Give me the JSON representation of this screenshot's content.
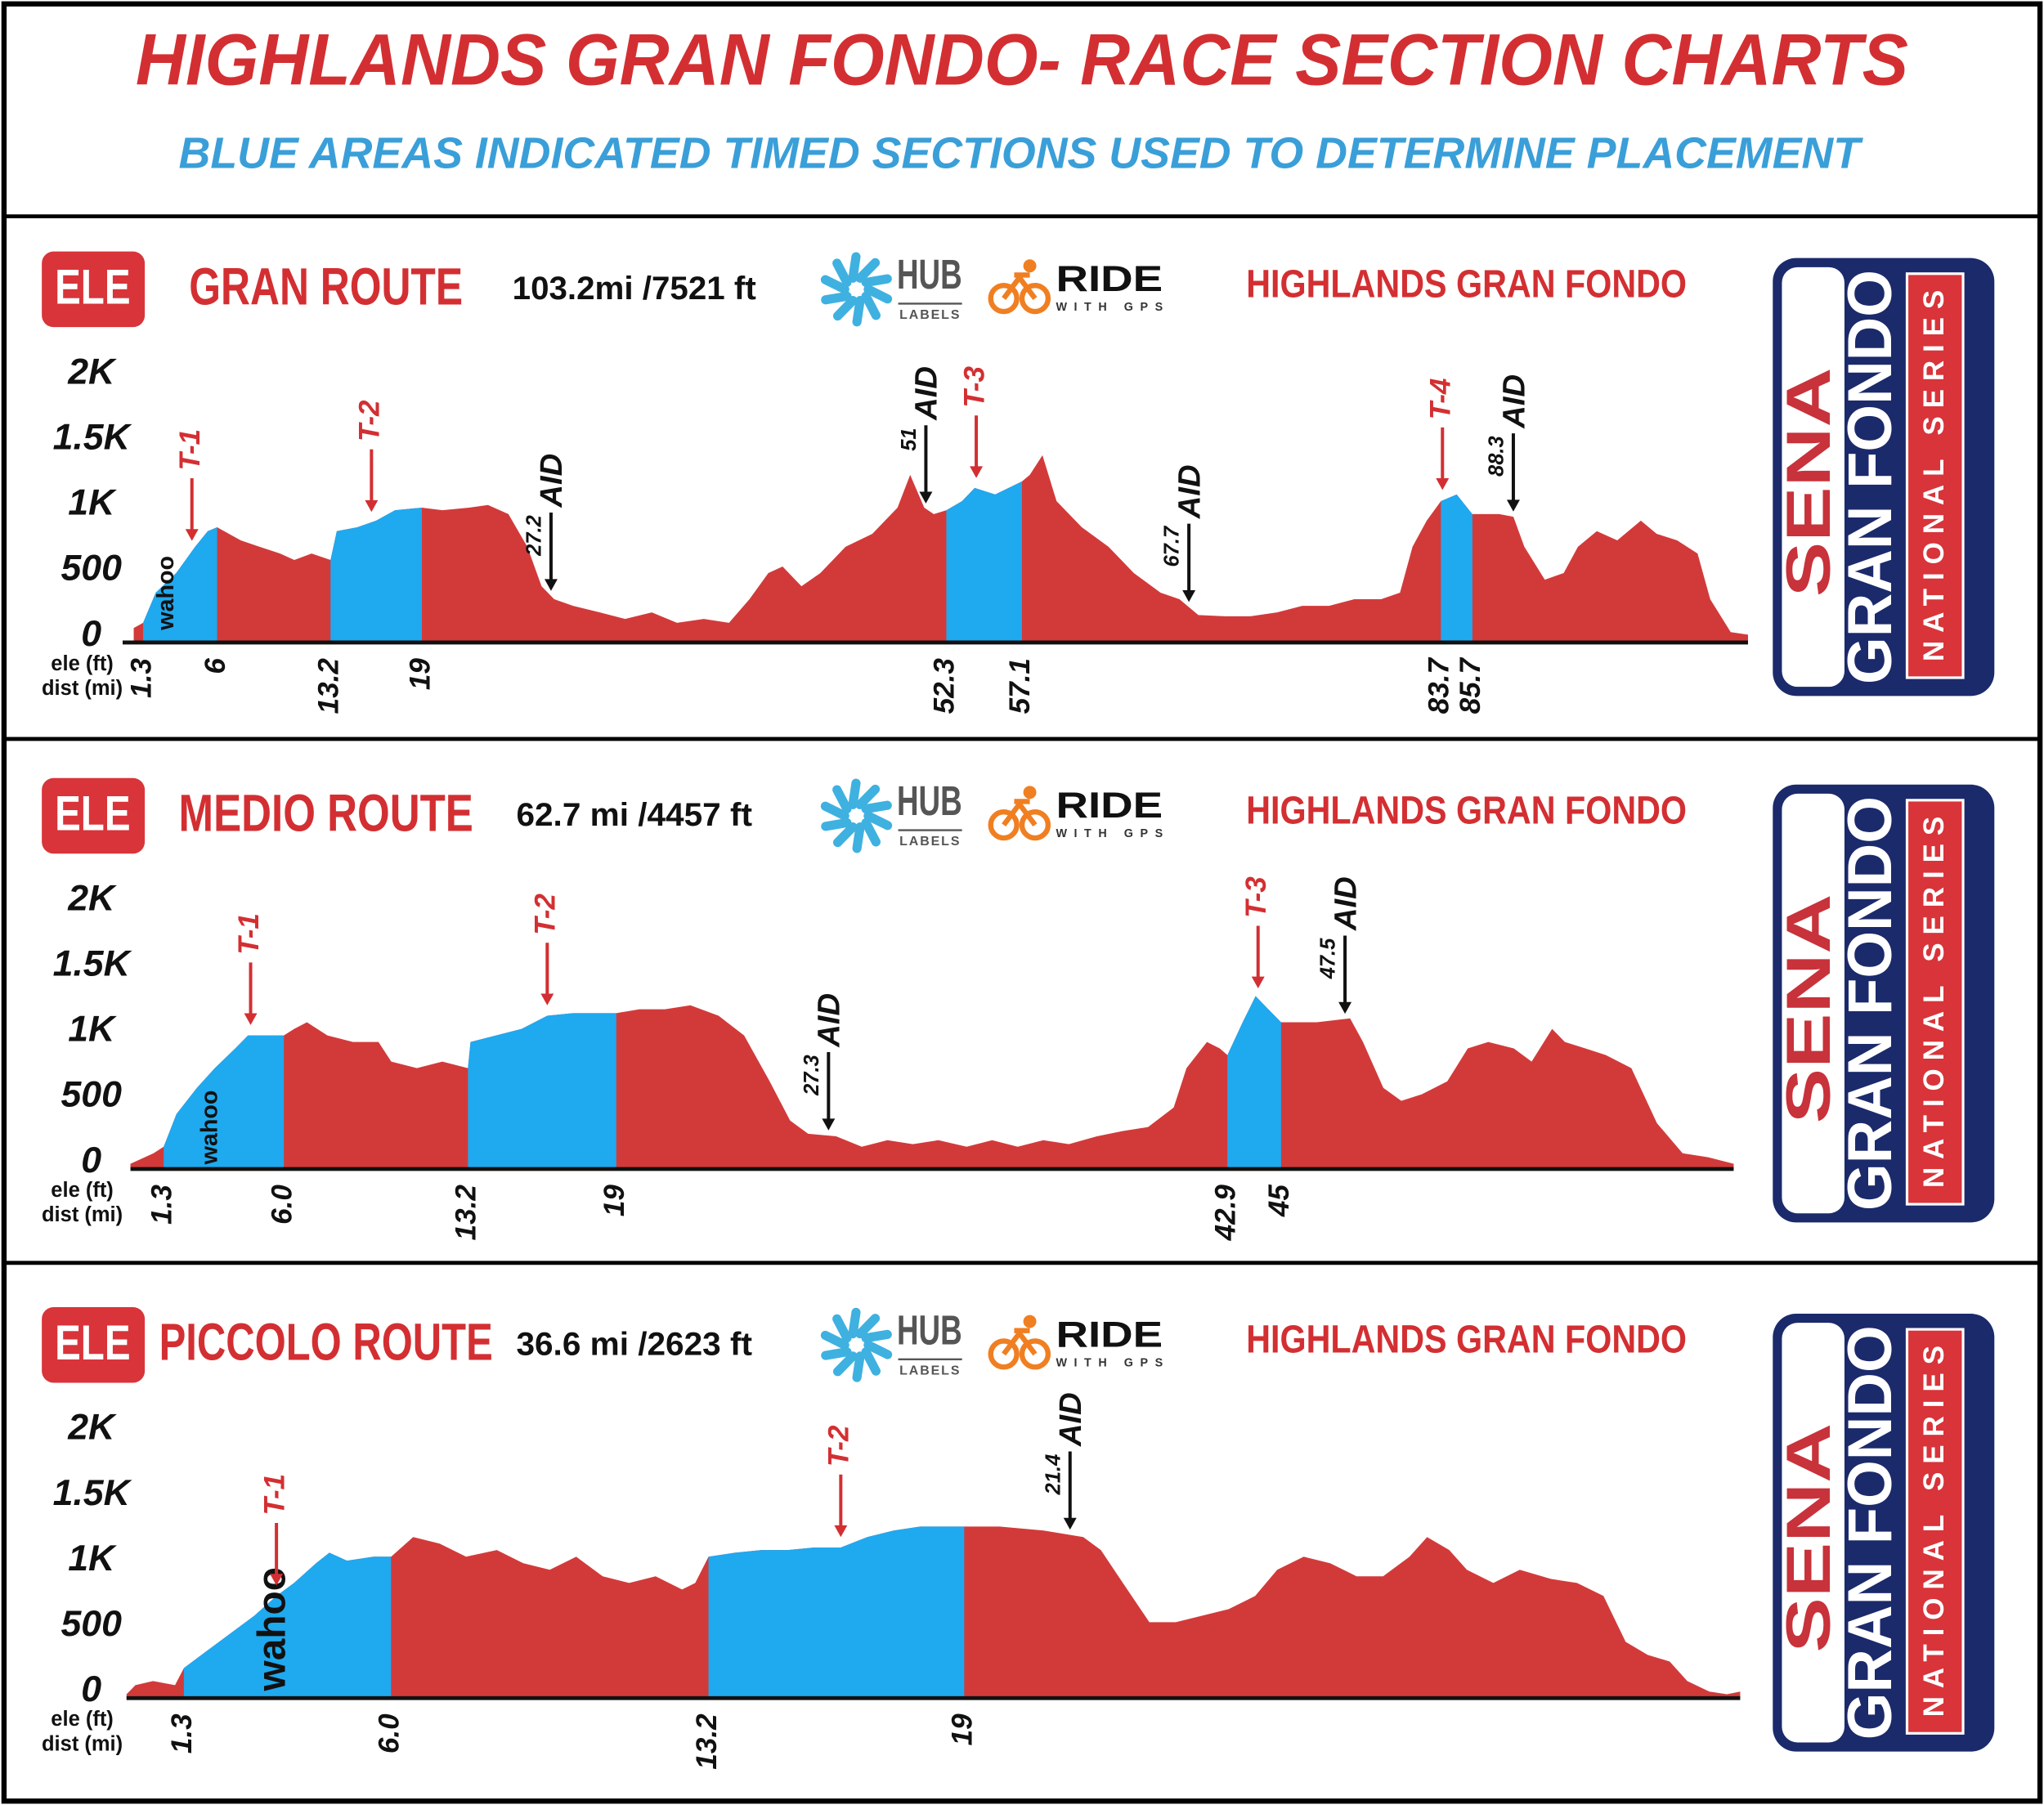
{
  "title": "HIGHLANDS GRAN FONDO- RACE SECTION CHARTS",
  "subtitle": "BLUE AREAS INDICATED TIMED SECTIONS USED TO DETERMINE PLACEMENT",
  "logos": {
    "ele": "ELE",
    "hub": "HUB",
    "hub_sub": "LABELS",
    "ride": "RIDE",
    "ride_sub": "WITH GPS",
    "brand": "HIGHLANDS GRAN FONDO",
    "sena": "SENA",
    "gran_fondo": "GRAN FONDO",
    "national": "NATIONAL SERIES",
    "wahoo": "wahoo"
  },
  "chart_data": [
    {
      "type": "area",
      "title": "GRAN ROUTE",
      "stats": "103.2mi /7521 ft",
      "ylabel": "ele (ft)",
      "xlabel": "dist (mi)",
      "color": "#d23a3a",
      "section_color": "#1fa9ef",
      "xlim": [
        0,
        103.2
      ],
      "ylim": [
        0,
        2000
      ],
      "yticks": [
        0,
        500,
        {
          "value": 1000,
          "label": "1K"
        },
        {
          "value": 1500,
          "label": "1.5K"
        },
        {
          "value": 2000,
          "label": "2K"
        }
      ],
      "xticks": [
        1.3,
        6,
        13.2,
        19,
        52.3,
        57.1,
        83.7,
        85.7
      ],
      "sections": [
        [
          1.3,
          6
        ],
        [
          13.2,
          19
        ],
        [
          52.3,
          57.1
        ],
        [
          83.7,
          85.7
        ]
      ],
      "timed_markers": [
        {
          "label": "T-1",
          "x": 4.4
        },
        {
          "label": "T-2",
          "x": 15.8
        },
        {
          "label": "T-3",
          "x": 54.2
        },
        {
          "label": "T-4",
          "x": 83.8
        }
      ],
      "aid_stations": [
        {
          "label": "AID",
          "x": 27.2
        },
        {
          "label": "AID",
          "x": 51
        },
        {
          "label": "AID",
          "x": 67.7
        },
        {
          "label": "AID",
          "x": 88.3
        }
      ],
      "x": [
        0.7,
        1.3,
        2.1,
        3.4,
        4.6,
        5.4,
        6,
        7.5,
        8.7,
        10,
        10.9,
        12,
        13.2,
        13.6,
        14.9,
        16.1,
        17.3,
        19,
        20.3,
        22,
        23.2,
        24.5,
        25.7,
        26.6,
        27.4,
        28.6,
        30.3,
        31.9,
        33.6,
        35.2,
        36.9,
        38.5,
        39.8,
        41,
        41.9,
        43.1,
        44.3,
        45.9,
        47.6,
        49.2,
        50,
        50.9,
        51.5,
        52.3,
        53.3,
        54.1,
        55.4,
        57.1,
        57.6,
        58.4,
        59.3,
        60.9,
        62.6,
        64.2,
        65.9,
        67.1,
        68.3,
        70,
        71.6,
        73.3,
        74.9,
        76.6,
        78.2,
        79.9,
        81.1,
        81.9,
        82.8,
        83.7,
        84.7,
        85.7,
        87.4,
        88.3,
        89,
        90.3,
        91.5,
        92.4,
        93.6,
        94.9,
        96.4,
        97.4,
        98.7,
        100,
        100.8,
        102.1,
        103.2
      ],
      "values": [
        110,
        150,
        380,
        530,
        730,
        850,
        880,
        780,
        730,
        680,
        630,
        680,
        630,
        850,
        880,
        930,
        1010,
        1030,
        1010,
        1030,
        1050,
        980,
        730,
        430,
        330,
        280,
        230,
        180,
        230,
        150,
        180,
        150,
        330,
        530,
        580,
        430,
        530,
        730,
        830,
        1030,
        1280,
        1030,
        980,
        1010,
        1080,
        1180,
        1130,
        1230,
        1280,
        1430,
        1080,
        880,
        730,
        530,
        380,
        330,
        210,
        200,
        200,
        230,
        280,
        280,
        330,
        330,
        380,
        730,
        930,
        1080,
        1130,
        980,
        980,
        960,
        730,
        480,
        530,
        730,
        850,
        780,
        930,
        830,
        780,
        680,
        330,
        80,
        60
      ]
    },
    {
      "type": "area",
      "title": "MEDIO ROUTE",
      "stats": "62.7 mi /4457 ft",
      "ylabel": "ele (ft)",
      "xlabel": "dist (mi)",
      "color": "#d23a3a",
      "section_color": "#1fa9ef",
      "xlim": [
        0,
        62.7
      ],
      "ylim": [
        0,
        2000
      ],
      "yticks": [
        0,
        500,
        {
          "value": 1000,
          "label": "1K"
        },
        {
          "value": 1500,
          "label": "1.5K"
        },
        {
          "value": 2000,
          "label": "2K"
        }
      ],
      "xticks": [
        1.3,
        {
          "value": 6,
          "label": "6.0"
        },
        13.2,
        19,
        42.9,
        45
      ],
      "sections": [
        [
          1.3,
          6
        ],
        [
          13.2,
          19
        ],
        [
          42.9,
          45
        ]
      ],
      "timed_markers": [
        {
          "label": "T-1",
          "x": 4.7
        },
        {
          "label": "T-2",
          "x": 16.3
        },
        {
          "label": "T-3",
          "x": 44.1
        }
      ],
      "aid_stations": [
        {
          "label": "AID",
          "x": 27.3
        },
        {
          "label": "AID",
          "x": 47.5
        }
      ],
      "x": [
        0,
        0.9,
        1.3,
        1.8,
        2.6,
        3.3,
        4.1,
        4.6,
        6,
        6.4,
        6.9,
        7.7,
        8.7,
        9.7,
        10.2,
        11.2,
        12.2,
        13.2,
        13.3,
        14.3,
        15.3,
        16.3,
        17.3,
        19,
        19.9,
        20.9,
        21.9,
        23,
        24,
        25,
        25.8,
        26.5,
        27.6,
        28.6,
        29.6,
        30.6,
        31.6,
        32.7,
        33.7,
        34.7,
        35.7,
        36.7,
        37.8,
        38.8,
        39.8,
        40.8,
        41.3,
        42.1,
        42.6,
        42.9,
        43.5,
        44,
        44.5,
        45,
        46.4,
        47.7,
        48.2,
        49,
        49.7,
        50.5,
        51.5,
        52.3,
        53.1,
        54.1,
        54.8,
        55.6,
        56.1,
        56.9,
        57.7,
        58.7,
        59.7,
        60.7,
        61.7,
        62.7
      ],
      "values": [
        40,
        120,
        170,
        420,
        620,
        770,
        920,
        1020,
        1020,
        1070,
        1120,
        1020,
        970,
        970,
        820,
        770,
        820,
        770,
        970,
        1020,
        1070,
        1170,
        1190,
        1190,
        1220,
        1220,
        1250,
        1170,
        1020,
        670,
        370,
        270,
        250,
        170,
        220,
        190,
        220,
        170,
        220,
        170,
        220,
        190,
        250,
        290,
        320,
        470,
        770,
        970,
        920,
        870,
        1120,
        1320,
        1220,
        1120,
        1120,
        1150,
        970,
        620,
        520,
        570,
        670,
        920,
        970,
        920,
        820,
        1070,
        970,
        920,
        870,
        770,
        350,
        120,
        90,
        40
      ]
    },
    {
      "type": "area",
      "title": "PICCOLO ROUTE",
      "stats": "36.6 mi /2623 ft",
      "ylabel": "ele (ft)",
      "xlabel": "dist (mi)",
      "color": "#d23a3a",
      "section_color": "#1fa9ef",
      "xlim": [
        0,
        36.6
      ],
      "ylim": [
        0,
        2000
      ],
      "yticks": [
        0,
        500,
        {
          "value": 1000,
          "label": "1K"
        },
        {
          "value": 1500,
          "label": "1.5K"
        },
        {
          "value": 2000,
          "label": "2K"
        }
      ],
      "xticks": [
        1.3,
        {
          "value": 6,
          "label": "6.0"
        },
        13.2,
        19
      ],
      "sections": [
        [
          1.3,
          6
        ],
        [
          13.2,
          19
        ]
      ],
      "timed_markers": [
        {
          "label": "T-1",
          "x": 3.4
        },
        {
          "label": "T-2",
          "x": 16.2
        }
      ],
      "aid_stations": [
        {
          "label": "AID",
          "x": 21.4
        }
      ],
      "x": [
        0,
        0.2,
        0.6,
        1.1,
        1.3,
        1.7,
        2.3,
        2.9,
        3.4,
        3.8,
        4.3,
        4.6,
        5,
        5.6,
        6,
        6.5,
        7.1,
        7.7,
        8.4,
        9,
        9.6,
        10.2,
        10.8,
        11.4,
        12,
        12.6,
        12.9,
        13.2,
        13.8,
        14.4,
        15,
        15.6,
        16.2,
        16.8,
        17.4,
        18,
        19,
        19.8,
        20.8,
        21.7,
        22.1,
        22.6,
        23.2,
        23.8,
        24.4,
        25,
        25.6,
        26.1,
        26.7,
        27.3,
        27.9,
        28.5,
        29.1,
        29.5,
        30,
        30.4,
        31,
        31.6,
        32.3,
        32.9,
        33.5,
        34,
        34.5,
        35,
        35.4,
        35.9,
        36.3,
        36.6
      ],
      "values": [
        30,
        100,
        130,
        100,
        230,
        330,
        480,
        630,
        780,
        880,
        1030,
        1110,
        1050,
        1080,
        1080,
        1230,
        1180,
        1080,
        1130,
        1030,
        980,
        1080,
        930,
        880,
        930,
        830,
        880,
        1080,
        1110,
        1130,
        1130,
        1150,
        1150,
        1230,
        1280,
        1310,
        1310,
        1310,
        1280,
        1230,
        1130,
        880,
        580,
        580,
        630,
        680,
        780,
        980,
        1080,
        1030,
        930,
        930,
        1080,
        1230,
        1130,
        980,
        880,
        980,
        910,
        880,
        780,
        430,
        330,
        280,
        130,
        50,
        30,
        50
      ]
    }
  ]
}
